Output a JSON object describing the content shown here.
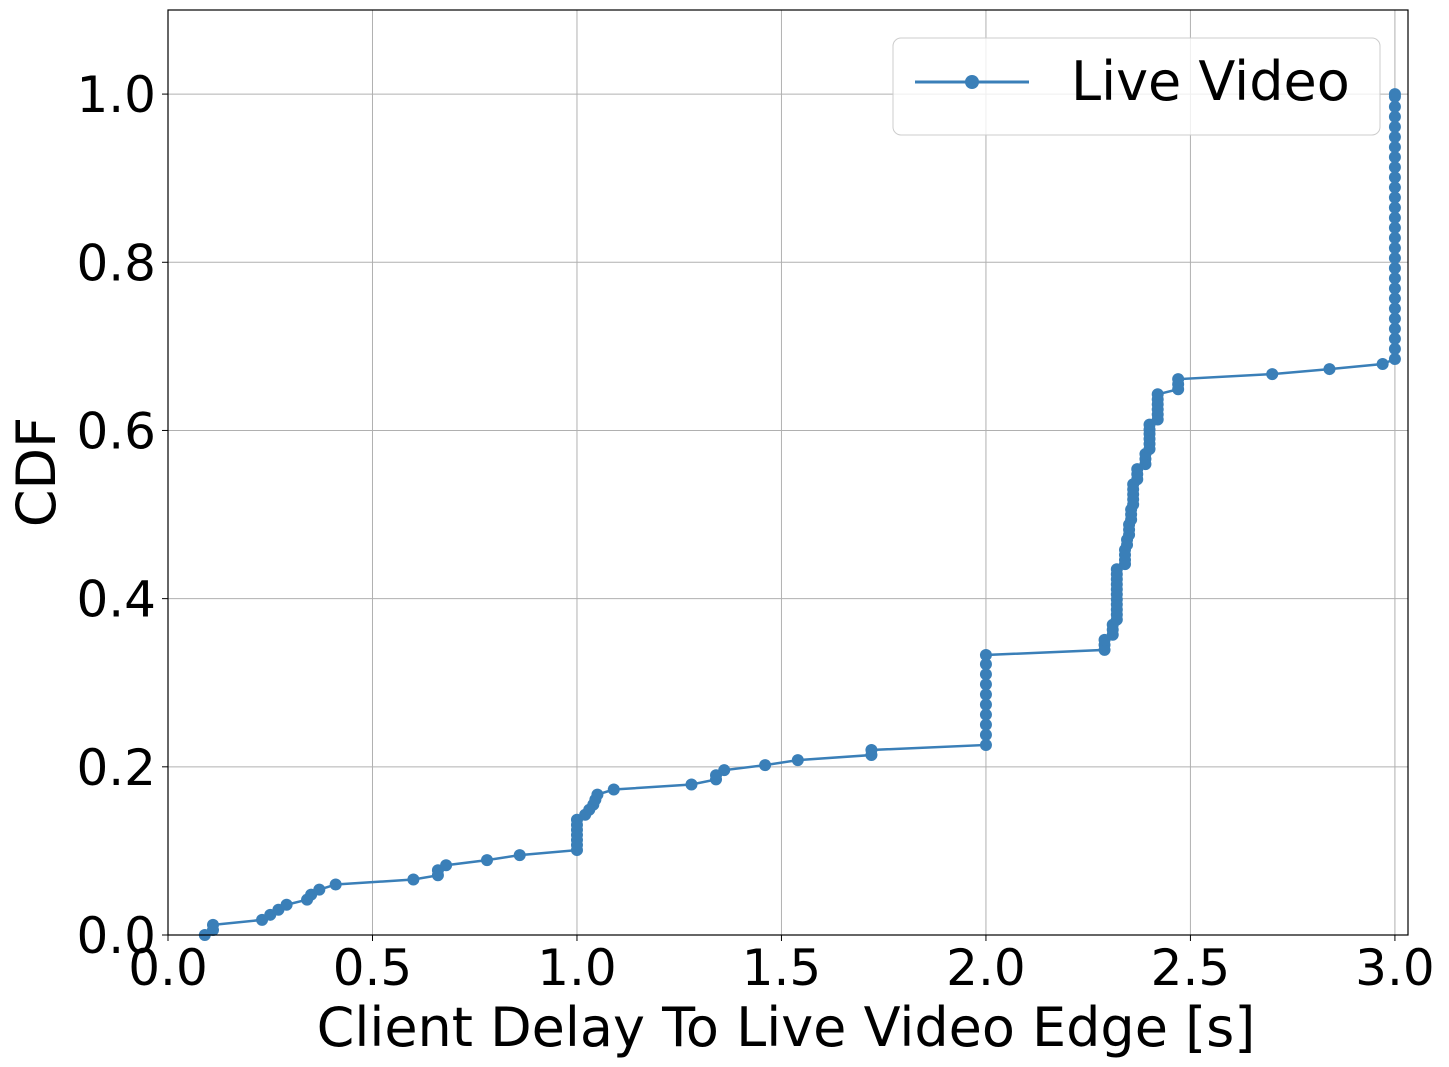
{
  "chart_data": {
    "type": "line",
    "xlabel": "Client Delay To Live Video Edge [s]",
    "ylabel": "CDF",
    "x": [
      0.09,
      0.11,
      0.11,
      0.23,
      0.25,
      0.27,
      0.29,
      0.34,
      0.35,
      0.37,
      0.41,
      0.6,
      0.66,
      0.66,
      0.68,
      0.78,
      0.86,
      1,
      1,
      1,
      1,
      1,
      1,
      1,
      1.02,
      1.03,
      1.04,
      1.045,
      1.05,
      1.09,
      1.28,
      1.34,
      1.34,
      1.36,
      1.46,
      1.54,
      1.72,
      1.72,
      2,
      2,
      2,
      2,
      2,
      2,
      2,
      2,
      2,
      2,
      2.29,
      2.29,
      2.29,
      2.31,
      2.31,
      2.31,
      2.32,
      2.32,
      2.32,
      2.32,
      2.32,
      2.32,
      2.32,
      2.32,
      2.32,
      2.32,
      2.32,
      2.34,
      2.34,
      2.34,
      2.34,
      2.345,
      2.345,
      2.35,
      2.35,
      2.35,
      2.355,
      2.355,
      2.355,
      2.36,
      2.36,
      2.36,
      2.36,
      2.36,
      2.37,
      2.37,
      2.37,
      2.39,
      2.39,
      2.39,
      2.4,
      2.4,
      2.4,
      2.4,
      2.4,
      2.4,
      2.42,
      2.42,
      2.42,
      2.42,
      2.42,
      2.42,
      2.47,
      2.47,
      2.47,
      2.7,
      2.84,
      2.97,
      3,
      3,
      3,
      3,
      3,
      3,
      3,
      3,
      3,
      3,
      3,
      3,
      3,
      3,
      3,
      3,
      3,
      3,
      3,
      3,
      3,
      3,
      3,
      3,
      3,
      3,
      3,
      3
    ],
    "series": [
      {
        "name": "Live Video",
        "color": "#3a7fb8",
        "values": [
          0,
          0.006,
          0.012,
          0.018,
          0.024,
          0.03,
          0.036,
          0.042,
          0.048,
          0.054,
          0.06,
          0.066,
          0.071,
          0.077,
          0.083,
          0.089,
          0.095,
          0.101,
          0.107,
          0.113,
          0.119,
          0.125,
          0.131,
          0.137,
          0.143,
          0.149,
          0.155,
          0.161,
          0.167,
          0.173,
          0.179,
          0.185,
          0.19,
          0.196,
          0.202,
          0.208,
          0.214,
          0.22,
          0.226,
          0.238,
          0.25,
          0.262,
          0.274,
          0.286,
          0.298,
          0.31,
          0.322,
          0.333,
          0.339,
          0.345,
          0.351,
          0.357,
          0.363,
          0.369,
          0.375,
          0.381,
          0.387,
          0.393,
          0.399,
          0.405,
          0.411,
          0.417,
          0.423,
          0.429,
          0.435,
          0.441,
          0.446,
          0.452,
          0.458,
          0.464,
          0.47,
          0.476,
          0.482,
          0.488,
          0.494,
          0.5,
          0.506,
          0.512,
          0.518,
          0.524,
          0.53,
          0.536,
          0.542,
          0.548,
          0.554,
          0.56,
          0.566,
          0.572,
          0.578,
          0.584,
          0.59,
          0.596,
          0.601,
          0.607,
          0.613,
          0.619,
          0.625,
          0.631,
          0.637,
          0.643,
          0.649,
          0.655,
          0.661,
          0.667,
          0.673,
          0.679,
          0.685,
          0.697,
          0.709,
          0.721,
          0.733,
          0.745,
          0.757,
          0.769,
          0.781,
          0.793,
          0.805,
          0.817,
          0.829,
          0.841,
          0.853,
          0.865,
          0.877,
          0.889,
          0.901,
          0.913,
          0.925,
          0.937,
          0.949,
          0.961,
          0.973,
          0.985,
          0.997,
          1.0
        ]
      }
    ],
    "xlim": [
      0,
      3.032
    ],
    "ylim": [
      0,
      1.1
    ],
    "xticks": [
      {
        "value": 0,
        "label": "0.0"
      },
      0.5,
      {
        "value": 1,
        "label": "1.0"
      },
      1.5,
      {
        "value": 2,
        "label": "2.0"
      },
      2.5,
      {
        "value": 3,
        "label": "3.0"
      }
    ],
    "yticks": [
      {
        "value": 0,
        "label": "0.0"
      },
      0.2,
      0.4,
      0.6,
      0.8,
      {
        "value": 1,
        "label": "1.0"
      }
    ],
    "grid": true,
    "legend": "upper right"
  }
}
